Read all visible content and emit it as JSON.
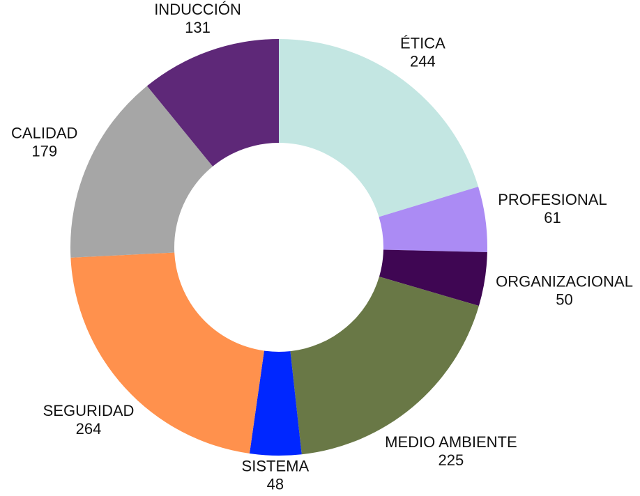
{
  "chart_data": {
    "type": "donut",
    "categories": [
      "ÉTICA",
      "PROFESIONAL",
      "ORGANIZACIONAL",
      "MEDIO AMBIENTE",
      "SISTEMA",
      "SEGURIDAD",
      "CALIDAD",
      "INDUCCIÓN"
    ],
    "values": [
      244,
      61,
      50,
      225,
      48,
      264,
      179,
      131
    ],
    "colors": [
      "#c3e6e2",
      "#ab8bf4",
      "#3f0653",
      "#697846",
      "#0027ff",
      "#ff914d",
      "#a6a6a6",
      "#5e2878"
    ]
  }
}
